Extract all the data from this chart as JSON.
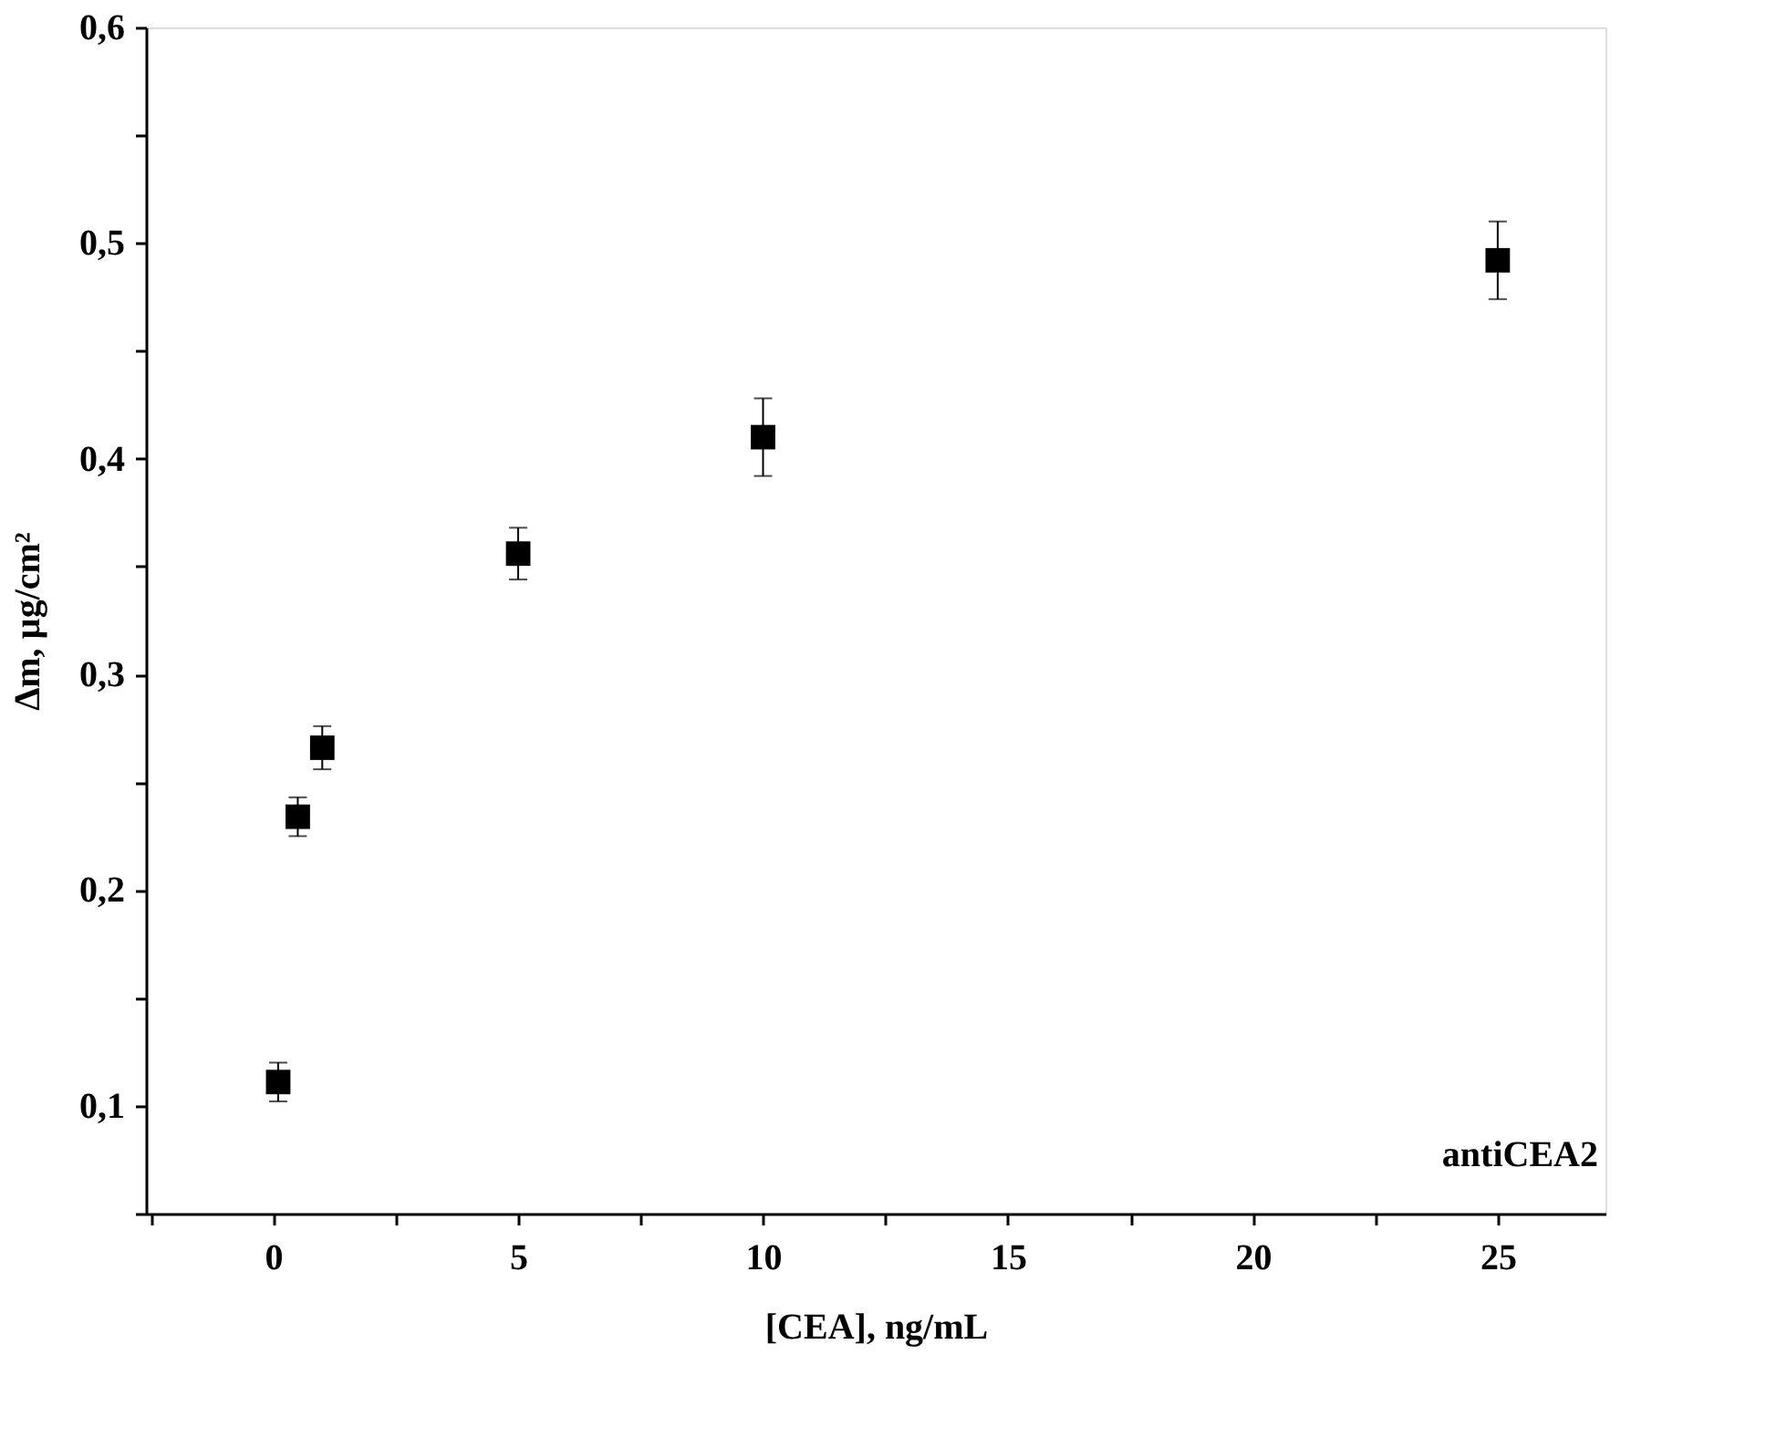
{
  "chart_data": {
    "type": "scatter",
    "xlabel": "[CEA], ng/mL",
    "ylabel": "Δm, µg/cm²",
    "annotations": [
      "antiCEA2"
    ],
    "x": [
      0.1,
      0.5,
      1,
      5,
      10,
      25
    ],
    "series": [
      {
        "color": "#000000",
        "values": [
          0.111,
          0.234,
          0.266,
          0.356,
          0.41,
          0.492
        ],
        "errors": [
          0.009,
          0.009,
          0.01,
          0.012,
          0.018,
          0.018
        ]
      }
    ],
    "xlim": [
      -2.6,
      27.2
    ],
    "ylim": [
      0.05,
      0.6
    ],
    "xticks": [
      {
        "value": -2.5,
        "label": null
      },
      0,
      {
        "value": 2.5,
        "label": null
      },
      5,
      {
        "value": 7.5,
        "label": null
      },
      10,
      {
        "value": 12.5,
        "label": null
      },
      15,
      {
        "value": 17.5,
        "label": null
      },
      20,
      {
        "value": 22.5,
        "label": null
      },
      25
    ],
    "yticks": [
      {
        "value": 0.05,
        "label": null
      },
      {
        "value": 0.1,
        "label": "0,1"
      },
      {
        "value": 0.15,
        "label": null
      },
      {
        "value": 0.2,
        "label": "0,2"
      },
      {
        "value": 0.25,
        "label": null
      },
      {
        "value": 0.3,
        "label": "0,3"
      },
      {
        "value": 0.35,
        "label": null
      },
      {
        "value": 0.4,
        "label": "0,4"
      },
      {
        "value": 0.45,
        "label": null
      },
      {
        "value": 0.5,
        "label": "0,5"
      },
      {
        "value": 0.55,
        "label": null
      },
      {
        "value": 0.6,
        "label": "0,6"
      }
    ],
    "marker": "square",
    "grid": false
  }
}
